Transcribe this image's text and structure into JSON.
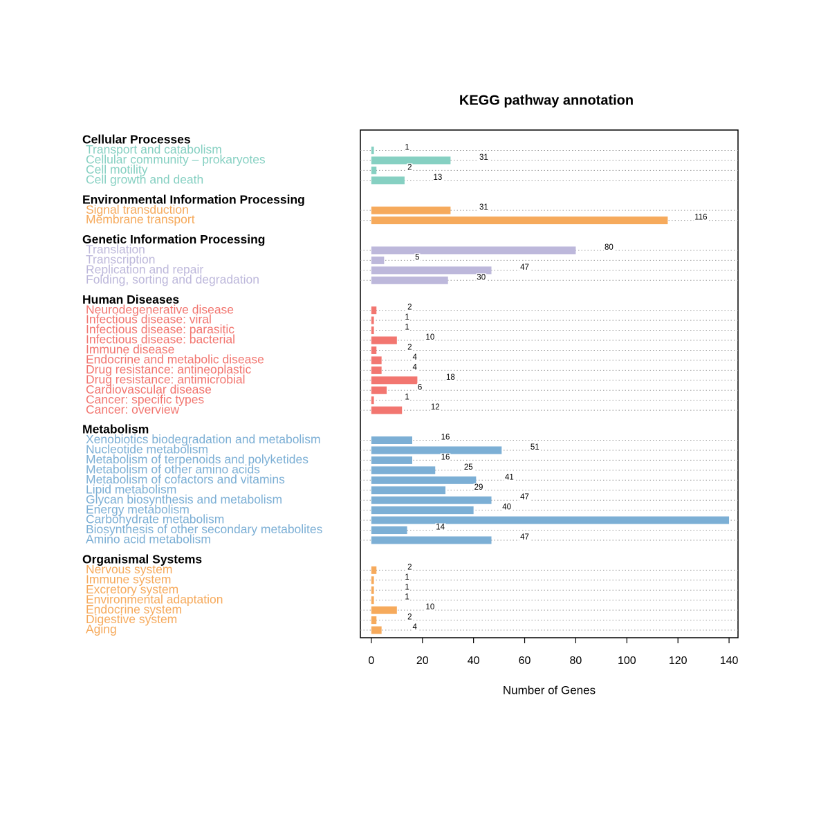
{
  "chart_data": {
    "type": "bar",
    "orientation": "horizontal",
    "title": "KEGG pathway annotation",
    "xlabel": "Number of Genes",
    "xlim": [
      -4.3,
      143.5
    ],
    "xticks": [
      0,
      20,
      40,
      60,
      80,
      100,
      120,
      140
    ],
    "groups": [
      {
        "name": "Cellular Processes",
        "color": "#86d0c2",
        "categories": [
          "Transport and catabolism",
          "Cellular community – prokaryotes",
          "Cell motility",
          "Cell growth and death"
        ],
        "values": [
          1,
          31,
          2,
          13
        ]
      },
      {
        "name": "Environmental Information Processing",
        "color": "#f6aa5c",
        "categories": [
          "Signal transduction",
          "Membrane transport"
        ],
        "values": [
          31,
          116
        ]
      },
      {
        "name": "Genetic Information Processing",
        "color": "#bdb8db",
        "categories": [
          "Translation",
          "Transcription",
          "Replication and repair",
          "Folding, sorting and degradation"
        ],
        "values": [
          80,
          5,
          47,
          30
        ]
      },
      {
        "name": "Human Diseases",
        "color": "#f27670",
        "categories": [
          "Neurodegenerative disease",
          "Infectious disease: viral",
          "Infectious disease: parasitic",
          "Infectious disease: bacterial",
          "Immune disease",
          "Endocrine and metabolic disease",
          "Drug resistance: antineoplastic",
          "Drug resistance: antimicrobial",
          "Cardiovascular disease",
          "Cancer: specific types",
          "Cancer: overview"
        ],
        "values": [
          2,
          1,
          1,
          10,
          2,
          4,
          4,
          18,
          6,
          1,
          12
        ]
      },
      {
        "name": "Metabolism",
        "color": "#7cafd5",
        "categories": [
          "Xenobiotics biodegradation and metabolism",
          "Nucleotide metabolism",
          "Metabolism of terpenoids and polyketides",
          "Metabolism of other amino acids",
          "Metabolism of cofactors and vitamins",
          "Lipid metabolism",
          "Glycan biosynthesis and metabolism",
          "Energy metabolism",
          "Carbohydrate metabolism",
          "Biosynthesis of other secondary metabolites",
          "Amino acid metabolism"
        ],
        "values": [
          16,
          51,
          16,
          25,
          41,
          29,
          47,
          40,
          140,
          14,
          47
        ]
      },
      {
        "name": "Organismal Systems",
        "color": "#f6aa5c",
        "categories": [
          "Nervous system",
          "Immune system",
          "Excretory system",
          "Environmental adaptation",
          "Endocrine system",
          "Digestive system",
          "Aging"
        ],
        "values": [
          2,
          1,
          1,
          1,
          10,
          2,
          4
        ]
      }
    ]
  }
}
